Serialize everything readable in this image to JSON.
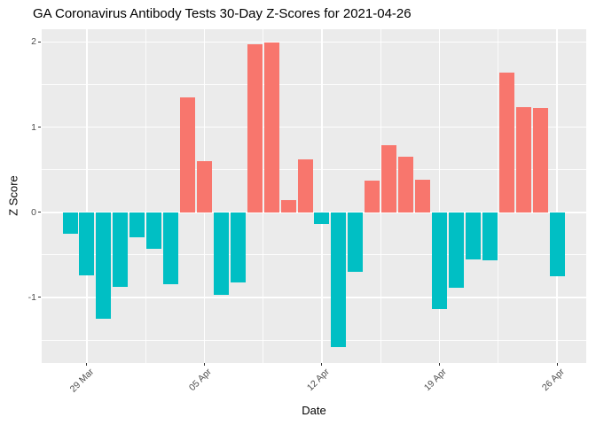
{
  "title": "GA Coronavirus Antibody Tests 30-Day Z-Scores for 2021-04-26",
  "colors": {
    "positive_bar": "#F8766D",
    "negative_bar": "#00BFC4",
    "panel_background": "#EBEBEB",
    "gridline": "#FFFFFF",
    "tick_text": "#4D4D4D",
    "tick_mark": "#333333",
    "title_text": "#000000"
  },
  "chart_data": {
    "type": "bar",
    "title": "GA Coronavirus Antibody Tests 30-Day Z-Scores for 2021-04-26",
    "xlabel": "Date",
    "ylabel": "Z Score",
    "x": [
      "2021-03-28",
      "2021-03-29",
      "2021-03-30",
      "2021-03-31",
      "2021-04-01",
      "2021-04-02",
      "2021-04-03",
      "2021-04-04",
      "2021-04-05",
      "2021-04-06",
      "2021-04-07",
      "2021-04-08",
      "2021-04-09",
      "2021-04-10",
      "2021-04-11",
      "2021-04-12",
      "2021-04-13",
      "2021-04-14",
      "2021-04-15",
      "2021-04-16",
      "2021-04-17",
      "2021-04-18",
      "2021-04-19",
      "2021-04-20",
      "2021-04-21",
      "2021-04-22",
      "2021-04-23",
      "2021-04-24",
      "2021-04-25",
      "2021-04-26"
    ],
    "values": [
      -0.25,
      -0.74,
      -1.25,
      -0.88,
      -0.29,
      -0.43,
      -0.84,
      1.35,
      0.6,
      -0.97,
      -0.82,
      1.97,
      1.99,
      0.14,
      0.62,
      -0.14,
      -1.58,
      -0.7,
      0.37,
      0.79,
      0.65,
      0.38,
      -1.14,
      -0.89,
      -0.55,
      -0.56,
      1.64,
      1.24,
      1.22,
      -0.75
    ],
    "x_tick_labels": [
      "29 Mar",
      "05 Apr",
      "12 Apr",
      "19 Apr",
      "26 Apr"
    ],
    "x_major_tick_indices": [
      1,
      8,
      15,
      22,
      29
    ],
    "x_minor_tick_indices": [
      4.5,
      11.5,
      18.5,
      25.5
    ],
    "y_major_ticks": [
      -1,
      0,
      1,
      2
    ],
    "y_minor_ticks": [
      -1.5,
      -0.5,
      0.5,
      1.5
    ],
    "y_tick_labels": [
      "-1",
      "0",
      "1",
      "2"
    ],
    "ylim": [
      -1.77,
      2.15
    ],
    "grid": true,
    "legend": false,
    "bar_orientation": "vertical",
    "positive_color": "#F8766D",
    "negative_color": "#00BFC4"
  }
}
